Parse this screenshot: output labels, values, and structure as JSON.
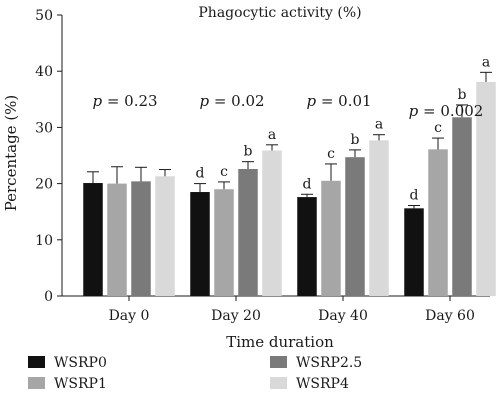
{
  "chart_data": {
    "type": "bar",
    "title": "Phagocytic activity (%)",
    "xlabel": "Time duration",
    "ylabel": "Percentage (%)",
    "ylim": [
      0,
      50
    ],
    "yticks": [
      0,
      10,
      20,
      30,
      40,
      50
    ],
    "grid": false,
    "legend_position": "bottom",
    "categories": [
      "Day 0",
      "Day 20",
      "Day 40",
      "Day 60"
    ],
    "p_values": [
      "= 0.23",
      "= 0.02",
      "= 0.01",
      "= 0.002"
    ],
    "p_label": "p",
    "series": [
      {
        "name": "WSRP0",
        "color": "#111111",
        "values": [
          20.1,
          18.5,
          17.6,
          15.6
        ],
        "errors": [
          2.0,
          1.5,
          0.5,
          0.5
        ],
        "letters": [
          "",
          "d",
          "d",
          "d"
        ]
      },
      {
        "name": "WSRP1",
        "color": "#a6a6a6",
        "values": [
          20.0,
          19.0,
          20.5,
          26.1
        ],
        "errors": [
          3.0,
          1.3,
          3.0,
          2.0
        ],
        "letters": [
          "",
          "c",
          "c",
          "c"
        ]
      },
      {
        "name": "WSRP2.5",
        "color": "#7a7a7a",
        "values": [
          20.4,
          22.6,
          24.7,
          31.8
        ],
        "errors": [
          2.5,
          1.3,
          1.3,
          2.2
        ],
        "letters": [
          "",
          "b",
          "b",
          "b"
        ]
      },
      {
        "name": "WSRP4",
        "color": "#d9d9d9",
        "values": [
          21.3,
          25.9,
          27.7,
          38.1
        ],
        "errors": [
          1.2,
          1.0,
          1.0,
          1.7
        ],
        "letters": [
          "",
          "a",
          "a",
          "a"
        ]
      }
    ]
  }
}
